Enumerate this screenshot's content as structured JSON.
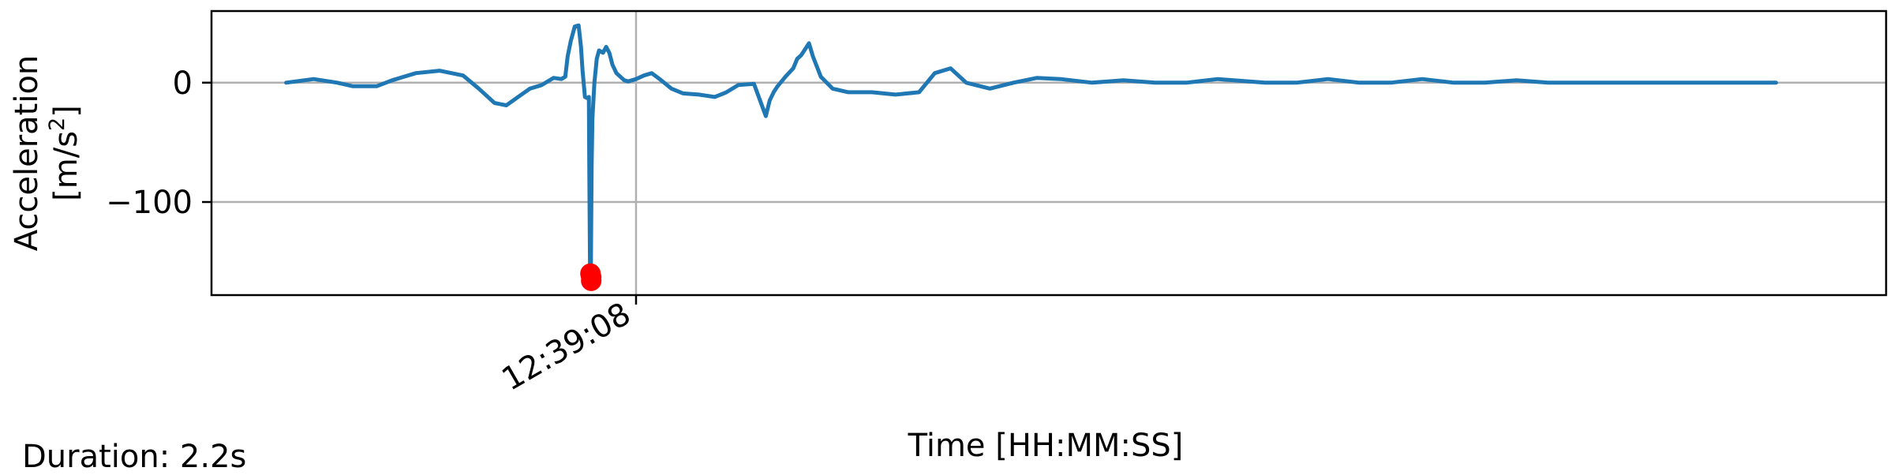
{
  "chart_data": {
    "type": "line",
    "title": "",
    "xlabel": "Time [HH:MM:SS]",
    "ylabel_line1": "Acceleration",
    "ylabel_line2_prefix": "[m/s",
    "ylabel_line2_sup": "2",
    "ylabel_line2_suffix": "]",
    "x_unit": "seconds",
    "xlim": [
      -0.54,
      1.59
    ],
    "ylim": [
      -178,
      60
    ],
    "grid": true,
    "legend": "none",
    "x_ticks": [
      {
        "value": 0.0,
        "label": "12:39:08"
      }
    ],
    "y_ticks": [
      {
        "value": 0,
        "label": "0"
      },
      {
        "value": -100,
        "label": "−100"
      }
    ],
    "series": [
      {
        "color": "#1f77b4",
        "x": [
          -0.445,
          -0.41,
          -0.38,
          -0.36,
          -0.33,
          -0.31,
          -0.28,
          -0.25,
          -0.22,
          -0.2,
          -0.18,
          -0.165,
          -0.15,
          -0.135,
          -0.12,
          -0.105,
          -0.095,
          -0.09,
          -0.087,
          -0.083,
          -0.078,
          -0.073,
          -0.07,
          -0.068,
          -0.065,
          -0.062,
          -0.06,
          -0.0595,
          -0.0585,
          -0.0575,
          -0.0565,
          -0.0555,
          -0.053,
          -0.05,
          -0.047,
          -0.042,
          -0.038,
          -0.034,
          -0.03,
          -0.025,
          -0.02,
          -0.015,
          -0.01,
          -0.005,
          0.0,
          0.01,
          0.02,
          0.03,
          0.045,
          0.06,
          0.08,
          0.1,
          0.115,
          0.13,
          0.15,
          0.165,
          0.17,
          0.175,
          0.18,
          0.19,
          0.2,
          0.205,
          0.21,
          0.215,
          0.22,
          0.225,
          0.235,
          0.25,
          0.27,
          0.3,
          0.33,
          0.36,
          0.38,
          0.4,
          0.42,
          0.45,
          0.48,
          0.51,
          0.54,
          0.58,
          0.62,
          0.66,
          0.7,
          0.74,
          0.76,
          0.8,
          0.84,
          0.88,
          0.92,
          0.96,
          1.0,
          1.04,
          1.08,
          1.12,
          1.16,
          1.2,
          1.25,
          1.3,
          1.35,
          1.4,
          1.45
        ],
        "y": [
          0,
          3,
          0,
          -3,
          -3,
          2,
          8,
          10,
          6,
          -5,
          -17,
          -19,
          -12,
          -5,
          -2,
          4,
          3,
          5,
          22,
          35,
          47,
          48,
          30,
          10,
          -12,
          -13,
          -12,
          -70,
          -160,
          -160,
          -70,
          -30,
          0,
          20,
          27,
          25,
          30,
          25,
          15,
          8,
          5,
          2,
          1,
          2,
          3,
          6,
          8,
          3,
          -5,
          -9,
          -10,
          -12,
          -8,
          -2,
          -1,
          -28,
          -15,
          -8,
          -3,
          5,
          12,
          20,
          23,
          28,
          33,
          22,
          5,
          -5,
          -8,
          -8,
          -10,
          -8,
          8,
          12,
          0,
          -5,
          0,
          4,
          3,
          0,
          2,
          0,
          0,
          3,
          2,
          0,
          0,
          3,
          0,
          0,
          3,
          0,
          0,
          2,
          0,
          0,
          0,
          0,
          0,
          0,
          0
        ]
      }
    ],
    "markers": {
      "color": "#ff0000",
      "x": [
        -0.058,
        -0.057,
        -0.057
      ],
      "y": [
        -160,
        -163,
        -166
      ]
    }
  },
  "footer": {
    "duration": "Duration: 2.2s"
  }
}
